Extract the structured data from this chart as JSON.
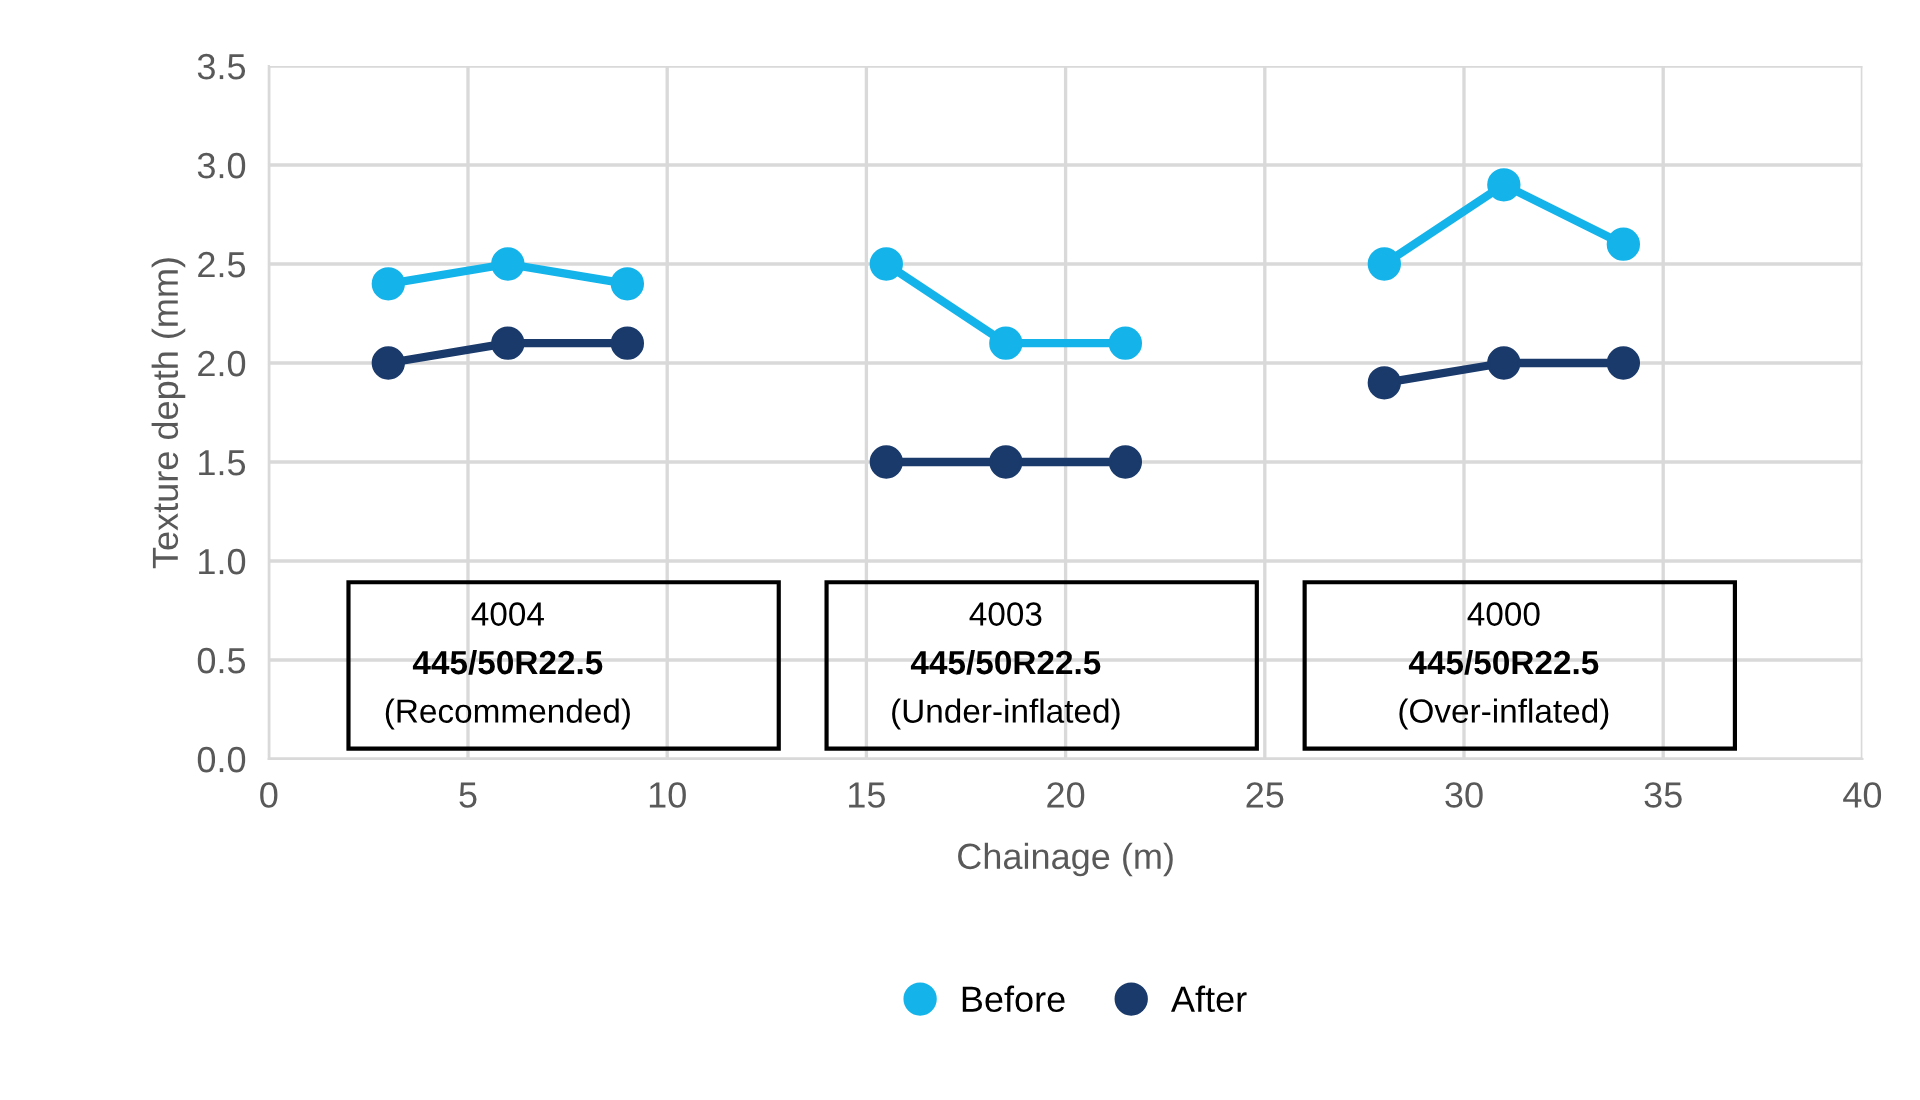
{
  "chart_data": {
    "type": "line",
    "xlabel": "Chainage (m)",
    "ylabel": "Texture depth (mm)",
    "x": [
      3,
      6,
      9,
      12,
      15.5,
      18.5,
      21.5,
      25,
      28,
      31,
      34
    ],
    "series": [
      {
        "name": "Before",
        "color": "#14b4ea",
        "values": [
          2.4,
          2.5,
          2.4,
          null,
          2.5,
          2.1,
          2.1,
          null,
          2.5,
          2.9,
          2.6
        ]
      },
      {
        "name": "After",
        "color": "#1a3a6b",
        "values": [
          2.0,
          2.1,
          2.1,
          null,
          1.5,
          1.5,
          1.5,
          null,
          1.9,
          2.0,
          2.0
        ]
      }
    ],
    "xlim": [
      0,
      40
    ],
    "xticks": [
      0,
      5,
      10,
      15,
      20,
      25,
      30,
      35,
      40
    ],
    "ylim": [
      0,
      3.5
    ],
    "yticks": [
      {
        "value": 0,
        "label": "0.0"
      },
      0.5,
      {
        "value": 1,
        "label": "1.0"
      },
      1.5,
      {
        "value": 2,
        "label": "2.0"
      },
      2.5,
      {
        "value": 3,
        "label": "3.0"
      },
      3.5
    ],
    "grid": true,
    "legend": "bottom",
    "marker": "circle",
    "line_style": "solid",
    "annotations": [
      "4004\n445/50R22.5\n(Recommended)",
      "4003\n445/50R22.5\n(Under-inflated)",
      "4000\n445/50R22.5\n(Over-inflated)"
    ]
  }
}
